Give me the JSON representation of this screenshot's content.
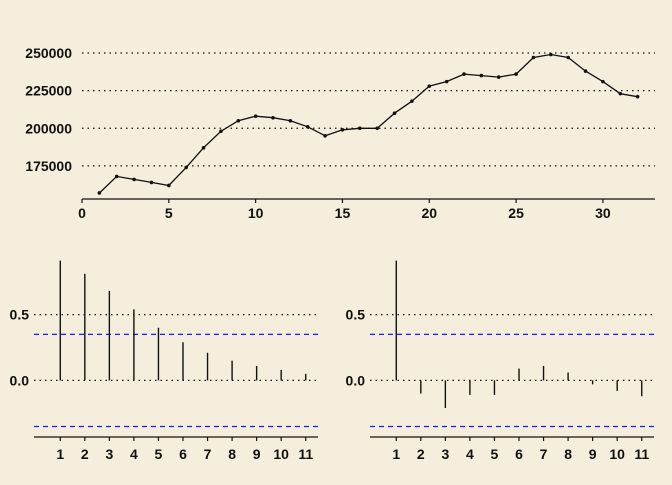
{
  "colors": {
    "background": "#f5eedc",
    "ink": "#111111",
    "confidence_band": "#1a1aff"
  },
  "chart_data": [
    {
      "type": "line",
      "title": "",
      "xlabel": "",
      "ylabel": "",
      "xlim": [
        0,
        33
      ],
      "ylim": [
        153000,
        256000
      ],
      "grid": "horizontal-dotted",
      "x_ticks": [
        0,
        5,
        10,
        15,
        20,
        25,
        30
      ],
      "x_tick_labels": [
        "0",
        "5",
        "10",
        "15",
        "20",
        "25",
        "30"
      ],
      "y_ticks": [
        175000,
        200000,
        225000,
        250000
      ],
      "y_tick_labels": [
        "175000",
        "200000",
        "225000",
        "250000"
      ],
      "x": [
        1,
        2,
        3,
        4,
        5,
        6,
        7,
        8,
        9,
        10,
        11,
        12,
        13,
        14,
        15,
        16,
        17,
        18,
        19,
        20,
        21,
        22,
        23,
        24,
        25,
        26,
        27,
        28,
        29,
        30,
        31,
        32
      ],
      "series": [
        {
          "values": [
            157000,
            168000,
            166000,
            164000,
            162000,
            174000,
            187000,
            198000,
            205000,
            208000,
            207000,
            205000,
            201000,
            195000,
            199000,
            200000,
            200000,
            210000,
            218000,
            228000,
            231000,
            236000,
            235000,
            234000,
            236000,
            247000,
            249000,
            247000,
            238000,
            231000,
            223000,
            221000
          ]
        }
      ]
    },
    {
      "type": "bar",
      "title": "",
      "xlabel": "",
      "ylabel": "",
      "xlim": [
        0.5,
        11.5
      ],
      "ylim": [
        -0.43,
        0.93
      ],
      "grid": "horizontal-dotted",
      "x_tick_labels": [
        "1",
        "2",
        "3",
        "4",
        "5",
        "6",
        "7",
        "8",
        "9",
        "10",
        "11"
      ],
      "y_ticks": [
        0.0,
        0.5
      ],
      "y_tick_labels": [
        "0.0",
        "0.5"
      ],
      "confidence_bound": 0.35,
      "categories": [
        1,
        2,
        3,
        4,
        5,
        6,
        7,
        8,
        9,
        10,
        11
      ],
      "values": [
        0.91,
        0.81,
        0.68,
        0.54,
        0.4,
        0.29,
        0.21,
        0.15,
        0.11,
        0.08,
        0.05
      ]
    },
    {
      "type": "bar",
      "title": "",
      "xlabel": "",
      "ylabel": "",
      "xlim": [
        0.5,
        11.5
      ],
      "ylim": [
        -0.43,
        0.93
      ],
      "grid": "horizontal-dotted",
      "x_tick_labels": [
        "1",
        "2",
        "3",
        "4",
        "5",
        "6",
        "7",
        "8",
        "9",
        "10",
        "11"
      ],
      "y_ticks": [
        0.0,
        0.5
      ],
      "y_tick_labels": [
        "0.0",
        "0.5"
      ],
      "confidence_bound": 0.35,
      "categories": [
        1,
        2,
        3,
        4,
        5,
        6,
        7,
        8,
        9,
        10,
        11
      ],
      "values": [
        0.91,
        -0.1,
        -0.21,
        -0.11,
        -0.11,
        0.09,
        0.11,
        0.06,
        -0.03,
        -0.08,
        -0.12
      ]
    }
  ]
}
